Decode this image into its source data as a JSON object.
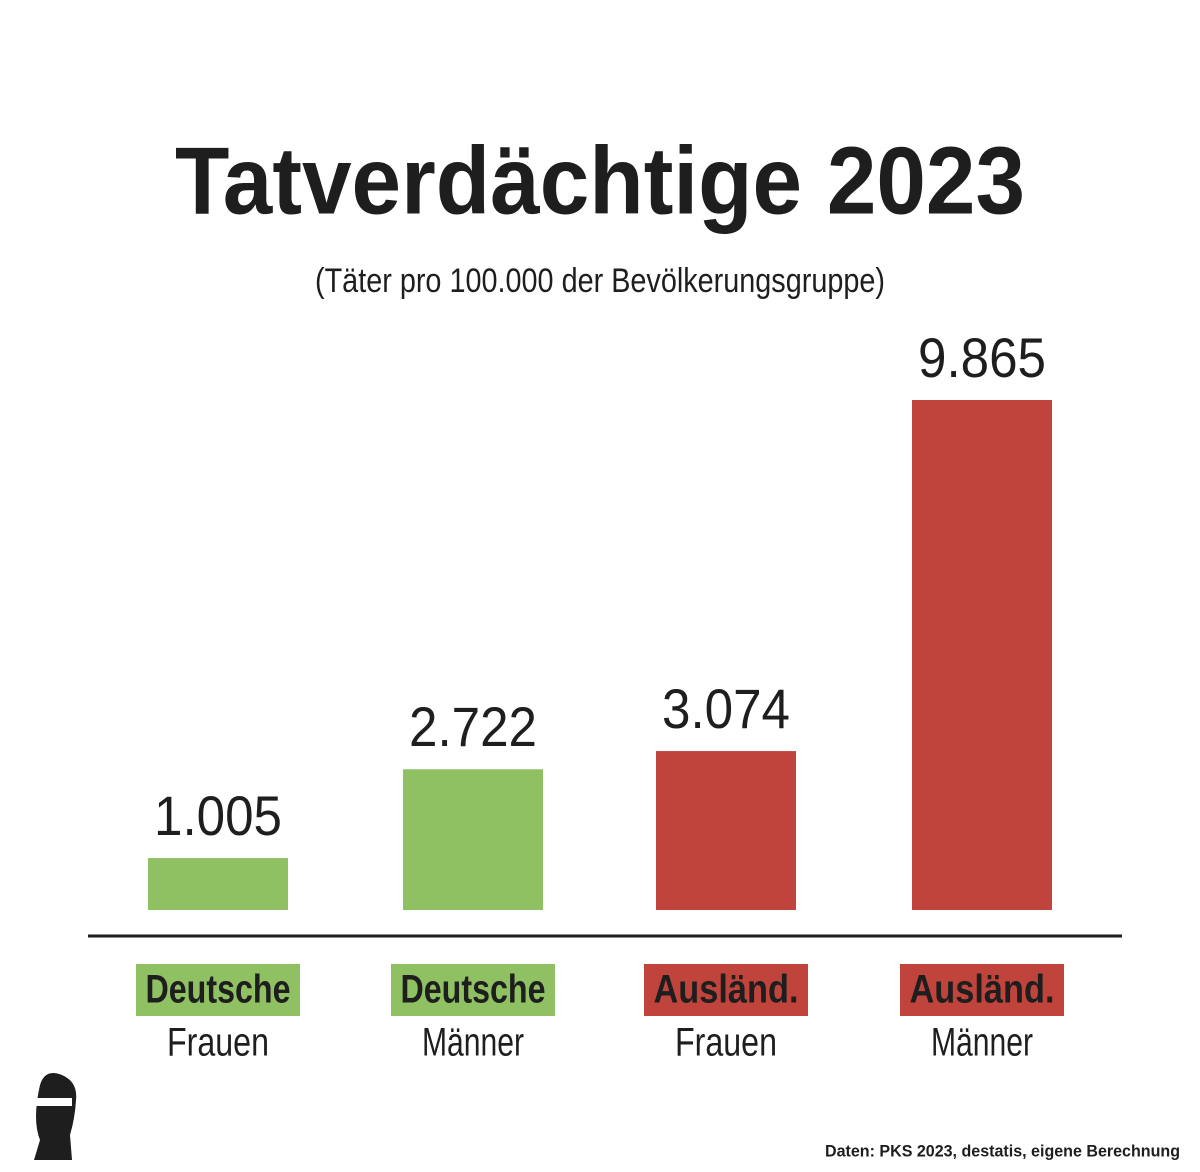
{
  "chart_data": {
    "type": "bar",
    "title": "Tatverdächtige 2023",
    "subtitle": "(Täter pro 100.000 der Bevölkerungsgruppe)",
    "groups": [
      "Deutsche",
      "Deutsche",
      "Ausländ.",
      "Ausländ."
    ],
    "categories": [
      "Frauen",
      "Männer",
      "Frauen",
      "Männer"
    ],
    "values": [
      1005,
      2722,
      3074,
      9865
    ],
    "value_labels": [
      "1.005",
      "2.722",
      "3.074",
      "9.865"
    ],
    "colors": [
      "#8fc163",
      "#8fc163",
      "#c0443c",
      "#c0443c"
    ],
    "ylim": [
      0,
      10000
    ],
    "source": "Daten: PKS 2023, destatis, eigene Berechnung"
  }
}
